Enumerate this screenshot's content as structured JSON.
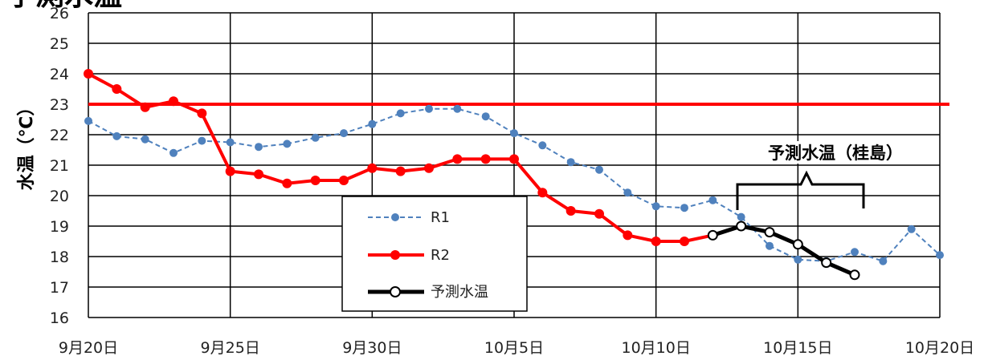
{
  "chart_data": {
    "type": "line",
    "title": "予測水温",
    "ylabel": "水温（℃）",
    "xlabel": "",
    "ylim": [
      16,
      26
    ],
    "yticks": [
      16,
      17,
      18,
      19,
      20,
      21,
      22,
      23,
      24,
      25,
      26
    ],
    "x_range": [
      "9月20日",
      "10月20日"
    ],
    "x_tick_labels": [
      "9月20日",
      "9月25日",
      "9月30日",
      "10月5日",
      "10月10日",
      "10月15日",
      "10月20日"
    ],
    "grid": true,
    "legend_position": "center-bottom",
    "reference_line": {
      "y": 23,
      "color": "#ff0000"
    },
    "annotation": "予測水温（桂島）",
    "series": [
      {
        "name": "R1",
        "color": "#4f81bd",
        "style": "dashed-dot-marker",
        "points": [
          [
            "9月20日",
            22.45
          ],
          [
            "9月21日",
            21.95
          ],
          [
            "9月22日",
            21.85
          ],
          [
            "9月23日",
            21.4
          ],
          [
            "9月24日",
            21.8
          ],
          [
            "9月25日",
            21.75
          ],
          [
            "9月26日",
            21.6
          ],
          [
            "9月27日",
            21.7
          ],
          [
            "9月28日",
            21.9
          ],
          [
            "9月29日",
            22.05
          ],
          [
            "9月30日",
            22.35
          ],
          [
            "10月1日",
            22.7
          ],
          [
            "10月2日",
            22.85
          ],
          [
            "10月3日",
            22.85
          ],
          [
            "10月4日",
            22.6
          ],
          [
            "10月5日",
            22.05
          ],
          [
            "10月6日",
            21.65
          ],
          [
            "10月7日",
            21.1
          ],
          [
            "10月8日",
            20.85
          ],
          [
            "10月9日",
            20.1
          ],
          [
            "10月10日",
            19.65
          ],
          [
            "10月11日",
            19.6
          ],
          [
            "10月12日",
            19.85
          ],
          [
            "10月13日",
            19.3
          ],
          [
            "10月14日",
            18.35
          ],
          [
            "10月15日",
            17.9
          ],
          [
            "10月16日",
            17.85
          ],
          [
            "10月17日",
            18.15
          ],
          [
            "10月18日",
            17.85
          ],
          [
            "10月19日",
            18.9
          ],
          [
            "10月20日",
            18.05
          ]
        ]
      },
      {
        "name": "R2",
        "color": "#ff0000",
        "style": "solid-marker",
        "points": [
          [
            "9月20日",
            24.0
          ],
          [
            "9月21日",
            23.5
          ],
          [
            "9月22日",
            22.9
          ],
          [
            "9月23日",
            23.1
          ],
          [
            "9月24日",
            22.7
          ],
          [
            "9月25日",
            20.8
          ],
          [
            "9月26日",
            20.7
          ],
          [
            "9月27日",
            20.4
          ],
          [
            "9月28日",
            20.5
          ],
          [
            "9月29日",
            20.5
          ],
          [
            "9月30日",
            20.9
          ],
          [
            "10月1日",
            20.8
          ],
          [
            "10月2日",
            20.9
          ],
          [
            "10月3日",
            21.2
          ],
          [
            "10月4日",
            21.2
          ],
          [
            "10月5日",
            21.2
          ],
          [
            "10月6日",
            20.1
          ],
          [
            "10月7日",
            19.5
          ],
          [
            "10月8日",
            19.4
          ],
          [
            "10月9日",
            18.7
          ],
          [
            "10月10日",
            18.5
          ],
          [
            "10月11日",
            18.5
          ],
          [
            "10月12日",
            18.7
          ]
        ]
      },
      {
        "name": "予測水温",
        "color": "#000000",
        "style": "solid-open-marker",
        "points": [
          [
            "10月12日",
            18.7
          ],
          [
            "10月13日",
            19.0
          ],
          [
            "10月14日",
            18.8
          ],
          [
            "10月15日",
            18.4
          ],
          [
            "10月16日",
            17.8
          ],
          [
            "10月17日",
            17.4
          ]
        ]
      }
    ]
  }
}
